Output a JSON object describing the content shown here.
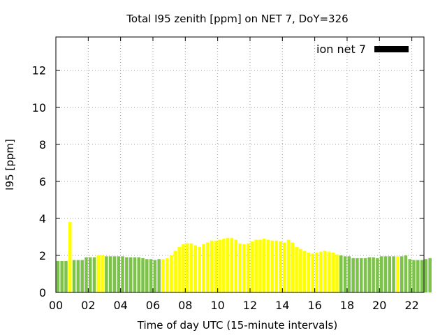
{
  "chart_data": {
    "type": "bar",
    "title": "Total I95 zenith [ppm] on NET 7, DoY=326",
    "xlabel": "Time of day UTC (15-minute intervals)",
    "ylabel": "I95 [ppm]",
    "xlim": [
      0,
      22.75
    ],
    "ylim": [
      0,
      13.8
    ],
    "x_ticks": [
      "00",
      "02",
      "04",
      "06",
      "08",
      "10",
      "12",
      "14",
      "16",
      "18",
      "20",
      "22"
    ],
    "y_ticks": [
      "0",
      "2",
      "4",
      "6",
      "8",
      "10",
      "12"
    ],
    "grid": true,
    "legend": {
      "label": "ion net 7",
      "placement": "top-right",
      "color": "#000000"
    },
    "colors": {
      "green": "#7dc24b",
      "yellow": "#ffff00"
    },
    "bar_interval_hours": 0.25,
    "values": [
      1.7,
      1.7,
      1.7,
      3.8,
      1.75,
      1.75,
      1.75,
      1.9,
      1.9,
      1.9,
      2.0,
      2.0,
      1.95,
      1.95,
      1.95,
      1.95,
      1.95,
      1.9,
      1.9,
      1.9,
      1.9,
      1.85,
      1.8,
      1.8,
      1.75,
      1.8,
      1.8,
      1.85,
      2.0,
      2.25,
      2.45,
      2.6,
      2.65,
      2.65,
      2.55,
      2.45,
      2.6,
      2.7,
      2.8,
      2.8,
      2.85,
      2.9,
      2.95,
      2.95,
      2.85,
      2.65,
      2.6,
      2.65,
      2.75,
      2.85,
      2.85,
      2.9,
      2.85,
      2.8,
      2.8,
      2.75,
      2.7,
      2.85,
      2.7,
      2.45,
      2.35,
      2.25,
      2.15,
      2.1,
      2.15,
      2.2,
      2.25,
      2.2,
      2.15,
      2.05,
      2.0,
      1.95,
      1.95,
      1.85,
      1.85,
      1.85,
      1.85,
      1.9,
      1.9,
      1.85,
      1.95,
      1.95,
      1.95,
      1.95,
      1.95,
      1.95,
      2.0,
      1.8,
      1.75,
      1.75,
      1.75,
      1.8,
      1.85
    ],
    "bar_colors": [
      "green",
      "green",
      "green",
      "yellow",
      "green",
      "green",
      "green",
      "green",
      "green",
      "green",
      "yellow",
      "yellow",
      "green",
      "green",
      "green",
      "green",
      "green",
      "green",
      "green",
      "green",
      "green",
      "green",
      "green",
      "green",
      "green",
      "green",
      "yellow",
      "yellow",
      "yellow",
      "yellow",
      "yellow",
      "yellow",
      "yellow",
      "yellow",
      "yellow",
      "yellow",
      "yellow",
      "yellow",
      "yellow",
      "yellow",
      "yellow",
      "yellow",
      "yellow",
      "yellow",
      "yellow",
      "yellow",
      "yellow",
      "yellow",
      "yellow",
      "yellow",
      "yellow",
      "yellow",
      "yellow",
      "yellow",
      "yellow",
      "yellow",
      "yellow",
      "yellow",
      "yellow",
      "yellow",
      "yellow",
      "yellow",
      "yellow",
      "yellow",
      "yellow",
      "yellow",
      "yellow",
      "yellow",
      "yellow",
      "yellow",
      "green",
      "green",
      "green",
      "green",
      "green",
      "green",
      "green",
      "green",
      "green",
      "green",
      "green",
      "green",
      "green",
      "green",
      "yellow",
      "green",
      "green",
      "green",
      "green",
      "green",
      "green"
    ]
  }
}
